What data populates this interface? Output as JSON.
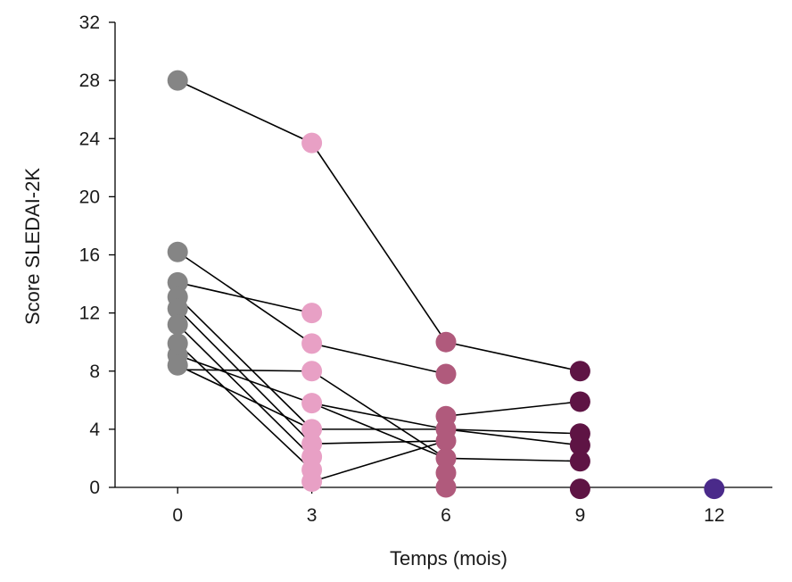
{
  "chart_data": {
    "type": "line",
    "title": "",
    "xlabel": "Temps (mois)",
    "ylabel": "Score SLEDAI-2K",
    "x_ticks": [
      0,
      3,
      6,
      9,
      12
    ],
    "y_ticks": [
      0,
      4,
      8,
      12,
      16,
      20,
      24,
      28,
      32
    ],
    "xlim": [
      -1.4,
      13.3
    ],
    "ylim": [
      0,
      32
    ],
    "grid": false,
    "legend": "none",
    "colors": {
      "month_0": "#858585",
      "month_3": "#e8a0c5",
      "month_6": "#b05a7c",
      "month_9": "#5e1444",
      "month_12": "#4a2a8a",
      "line": "#000000"
    },
    "points": [
      {
        "x": 0,
        "y": 28
      },
      {
        "x": 0,
        "y": 16.2
      },
      {
        "x": 0,
        "y": 14.1
      },
      {
        "x": 0,
        "y": 13.1
      },
      {
        "x": 0,
        "y": 12.3
      },
      {
        "x": 0,
        "y": 11.2
      },
      {
        "x": 0,
        "y": 9.9
      },
      {
        "x": 0,
        "y": 9.1
      },
      {
        "x": 0,
        "y": 8.4
      },
      {
        "x": 3,
        "y": 23.7
      },
      {
        "x": 3,
        "y": 12
      },
      {
        "x": 3,
        "y": 9.9
      },
      {
        "x": 3,
        "y": 8
      },
      {
        "x": 3,
        "y": 5.8
      },
      {
        "x": 3,
        "y": 4
      },
      {
        "x": 3,
        "y": 3
      },
      {
        "x": 3,
        "y": 2.1
      },
      {
        "x": 3,
        "y": 1.2
      },
      {
        "x": 3,
        "y": 0.4
      },
      {
        "x": 6,
        "y": 10
      },
      {
        "x": 6,
        "y": 7.8
      },
      {
        "x": 6,
        "y": 4.9
      },
      {
        "x": 6,
        "y": 4
      },
      {
        "x": 6,
        "y": 3.2
      },
      {
        "x": 6,
        "y": 2
      },
      {
        "x": 6,
        "y": 1
      },
      {
        "x": 6,
        "y": 0
      },
      {
        "x": 9,
        "y": 8
      },
      {
        "x": 9,
        "y": 5.9
      },
      {
        "x": 9,
        "y": 3.7
      },
      {
        "x": 9,
        "y": 2.9
      },
      {
        "x": 9,
        "y": 1.8
      },
      {
        "x": 9,
        "y": -0.1
      },
      {
        "x": 12,
        "y": -0.1
      }
    ],
    "segments": [
      [
        0,
        28,
        3,
        23.7
      ],
      [
        3,
        23.7,
        6,
        10
      ],
      [
        6,
        10,
        9,
        8
      ],
      [
        0,
        16.2,
        3,
        9.9
      ],
      [
        3,
        9.9,
        6,
        7.8
      ],
      [
        0,
        14.1,
        3,
        12
      ],
      [
        0,
        13.1,
        3,
        4
      ],
      [
        0,
        12.3,
        3,
        3
      ],
      [
        0,
        11.2,
        3,
        2.1
      ],
      [
        0,
        9.9,
        3,
        1.2
      ],
      [
        0,
        9.1,
        3,
        5.8
      ],
      [
        0,
        8.4,
        3,
        4
      ],
      [
        0,
        8.1,
        3,
        8
      ],
      [
        3,
        8,
        6,
        2
      ],
      [
        3,
        5.8,
        6,
        4
      ],
      [
        3,
        5.8,
        6,
        2
      ],
      [
        3,
        4,
        6,
        4
      ],
      [
        3,
        3,
        6,
        3.2
      ],
      [
        3,
        0.4,
        6,
        3.2
      ],
      [
        6,
        4.9,
        9,
        5.9
      ],
      [
        6,
        4,
        9,
        3.7
      ],
      [
        6,
        4,
        9,
        2.9
      ],
      [
        6,
        2,
        9,
        1.8
      ]
    ]
  }
}
